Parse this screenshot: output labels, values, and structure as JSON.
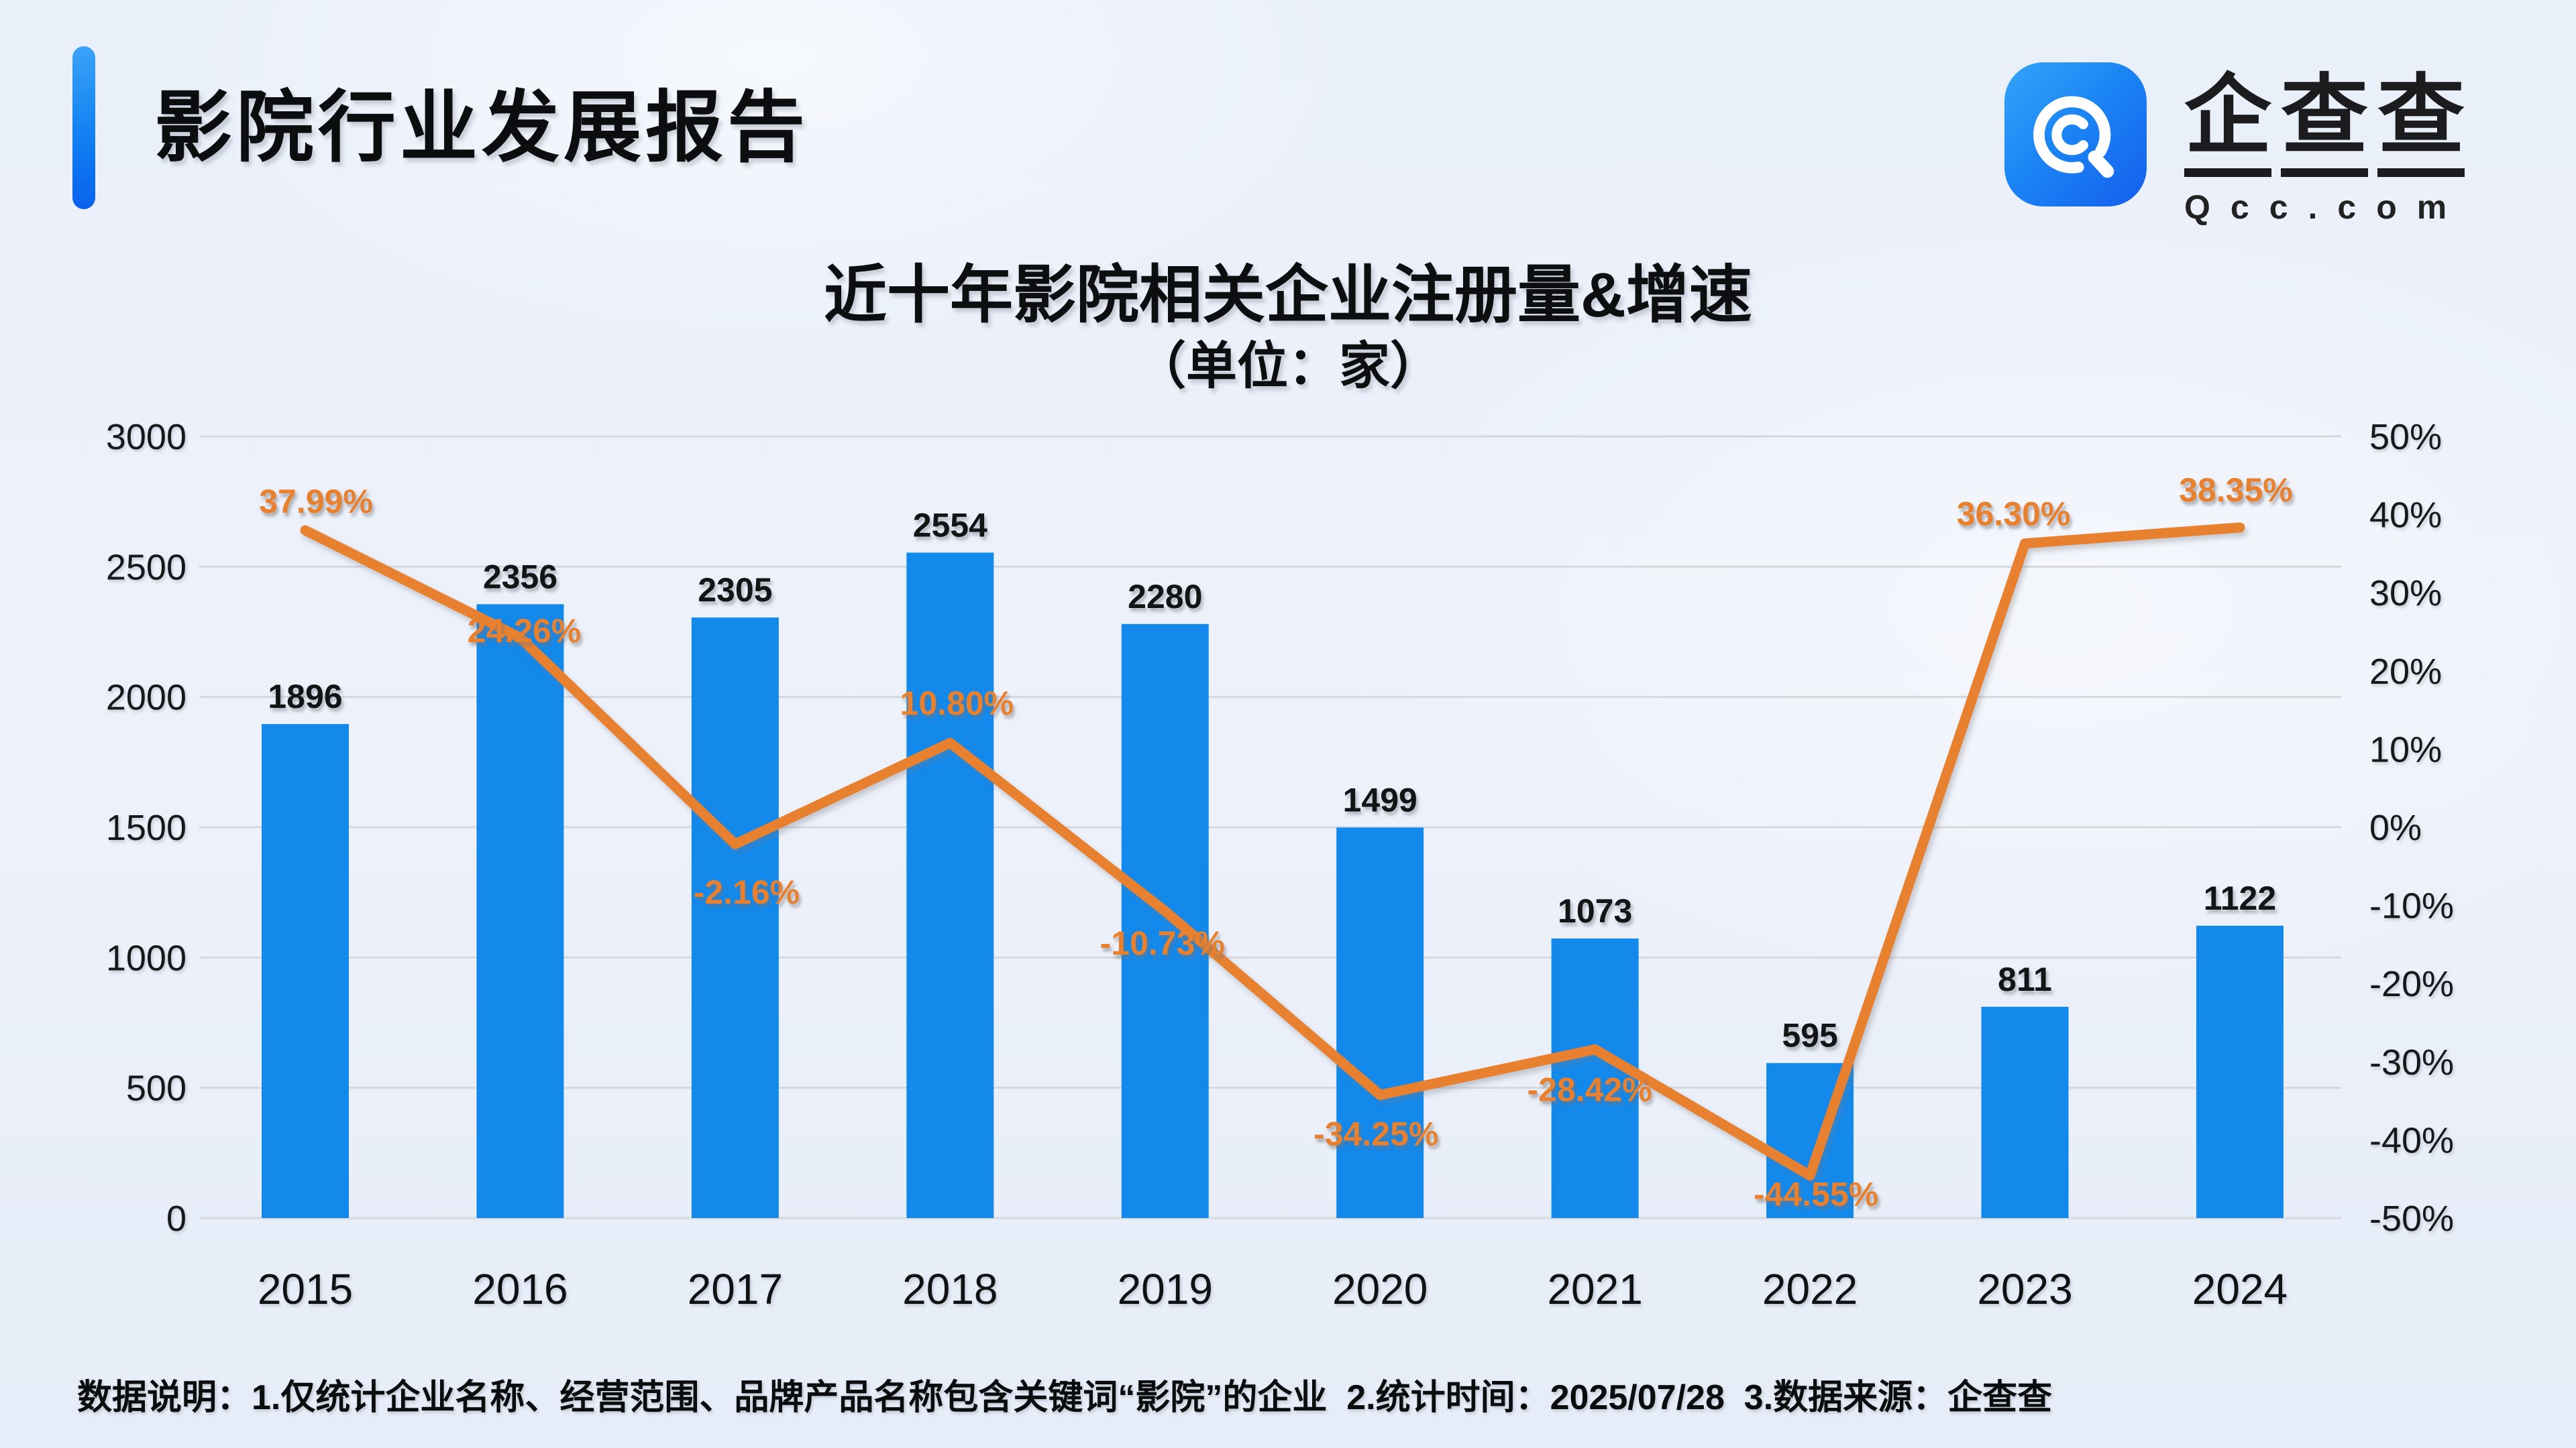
{
  "header": {
    "title": "影院行业发展报告",
    "accent_color": "#1180f2"
  },
  "logo": {
    "brand": "企查查",
    "brand_chars": [
      "企",
      "查",
      "查"
    ],
    "domain": "Qcc.com",
    "icon": "qcc-q-icon",
    "icon_color": "#1b85f4"
  },
  "chart": {
    "title": "近十年影院相关企业注册量&增速",
    "subtitle": "（单位：家）"
  },
  "chart_data": {
    "type": "bar+line",
    "title": "近十年影院相关企业注册量&增速",
    "subtitle": "（单位：家）",
    "categories": [
      "2015",
      "2016",
      "2017",
      "2018",
      "2019",
      "2020",
      "2021",
      "2022",
      "2023",
      "2024"
    ],
    "series": [
      {
        "name": "注册量",
        "type": "bar",
        "color": "#1389ec",
        "values": [
          1896,
          2356,
          2305,
          2554,
          2280,
          1499,
          1073,
          595,
          811,
          1122
        ],
        "labels": [
          "1896",
          "2356",
          "2305",
          "2554",
          "2280",
          "1499",
          "1073",
          "595",
          "811",
          "1122"
        ]
      },
      {
        "name": "增速",
        "type": "line",
        "color": "#e8812f",
        "values": [
          37.99,
          24.26,
          -2.16,
          10.8,
          -10.73,
          -34.25,
          -28.42,
          -44.55,
          36.3,
          38.35
        ],
        "labels": [
          "37.99%",
          "24.26%",
          "-2.16%",
          "10.80%",
          "-10.73%",
          "-34.25%",
          "-28.42%",
          "-44.55%",
          "36.30%",
          "38.35%"
        ]
      }
    ],
    "left_axis": {
      "range": [
        0,
        3000
      ],
      "ticks": [
        "0",
        "500",
        "1000",
        "1500",
        "2000",
        "2500",
        "3000"
      ]
    },
    "right_axis": {
      "range": [
        -50,
        50
      ],
      "ticks": [
        "50%",
        "40%",
        "30%",
        "20%",
        "10%",
        "0%",
        "-10%",
        "-20%",
        "-30%",
        "-40%",
        "-50%"
      ]
    },
    "grid": true,
    "legend": false
  },
  "footer": {
    "note": "数据说明：1.仅统计企业名称、经营范围、品牌产品名称包含关键词“影院”的企业  2.统计时间：2025/07/28  3.数据来源：企查查"
  }
}
